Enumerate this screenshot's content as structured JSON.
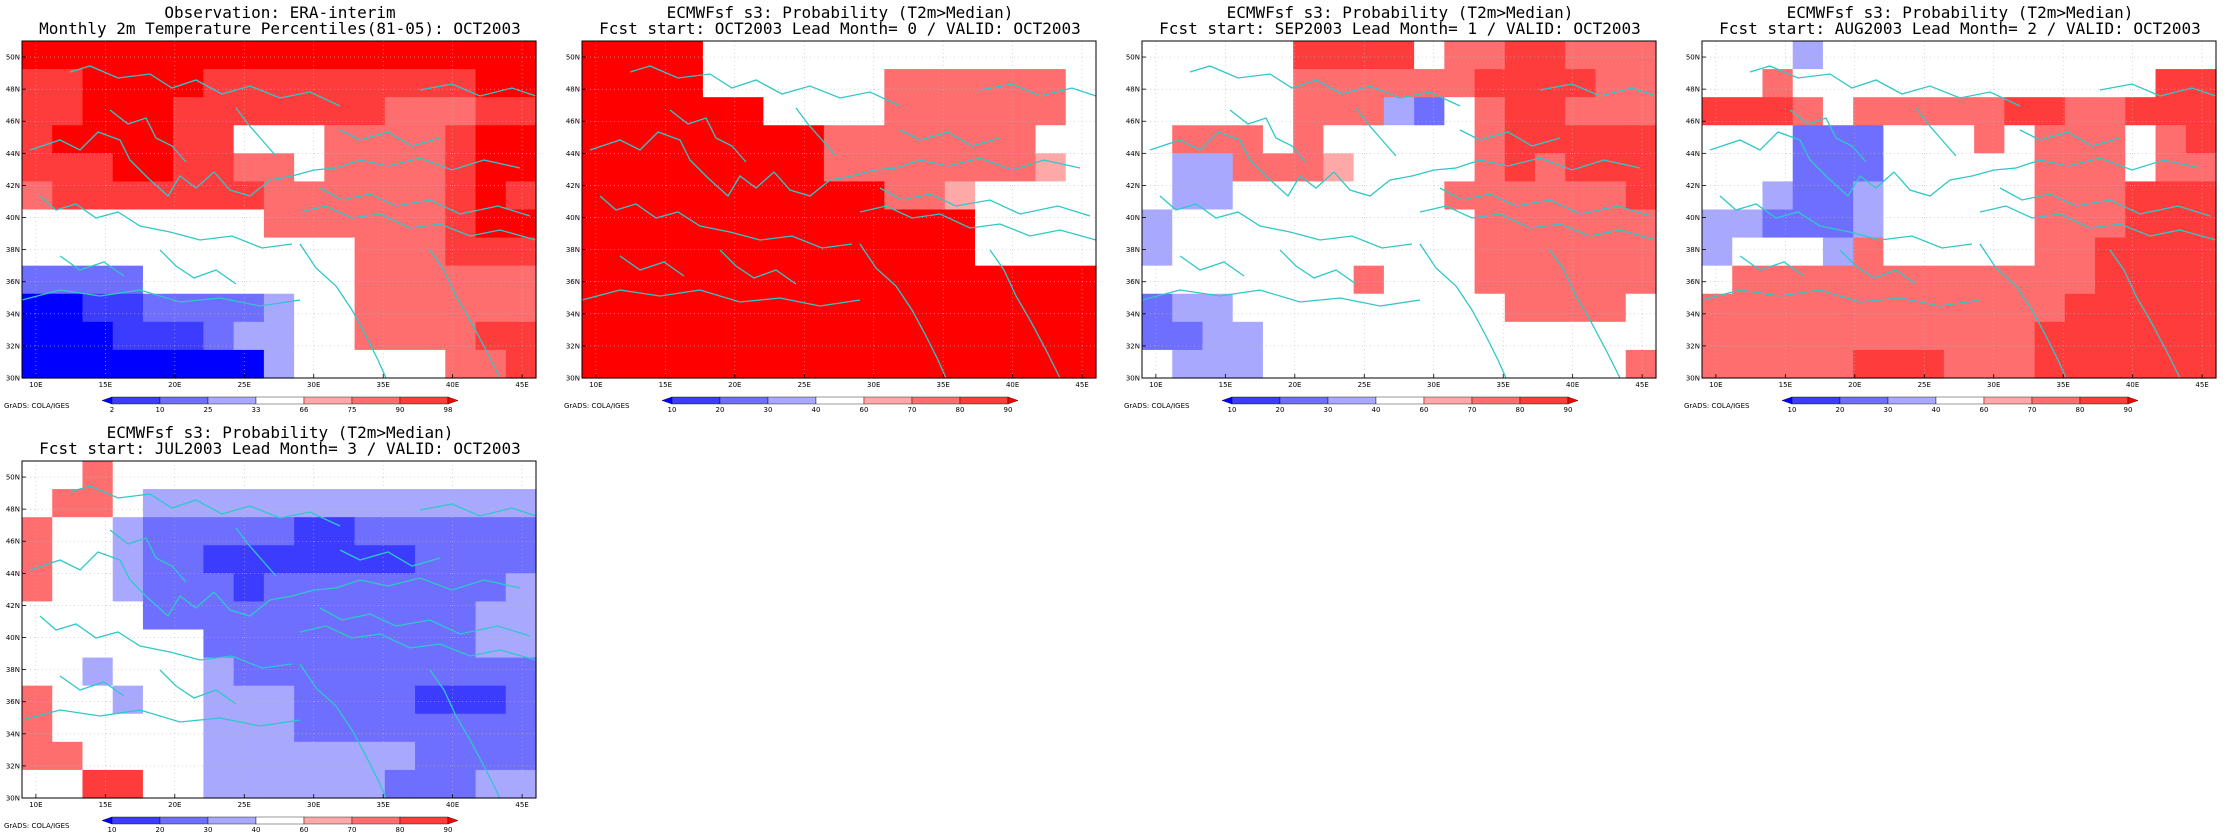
{
  "credit": "GrADS: COLA/IGES",
  "lat_range": [
    30,
    51
  ],
  "lon_range": [
    9,
    46
  ],
  "lat_ticks": [
    "30N",
    "32N",
    "34N",
    "36N",
    "38N",
    "40N",
    "42N",
    "44N",
    "46N",
    "48N",
    "50N"
  ],
  "lat_values": [
    30,
    32,
    34,
    36,
    38,
    40,
    42,
    44,
    46,
    48,
    50
  ],
  "lon_ticks": [
    "10E",
    "15E",
    "20E",
    "25E",
    "30E",
    "35E",
    "40E",
    "45E"
  ],
  "lon_values": [
    10,
    15,
    20,
    25,
    30,
    35,
    40,
    45
  ],
  "colors": {
    "coast": "#2fc8c8",
    "grid": "#bbbbbb",
    "obs_scale": [
      "#0000ff",
      "#3c3cff",
      "#6e6eff",
      "#a8a8ff",
      "#ffffff",
      "#ffa8a8",
      "#ff6e6e",
      "#ff3c3c",
      "#ff0000"
    ],
    "prob_scale": [
      "#0000ff",
      "#3c3cff",
      "#6e6eff",
      "#a8a8ff",
      "#ffffff",
      "#ffa8a8",
      "#ff6e6e",
      "#ff3c3c",
      "#ff0000"
    ]
  },
  "panels": [
    {
      "title1": "Observation: ERA-interim",
      "title2": "Monthly 2m Temperature Percentiles(81-05): OCT2003",
      "colorbar_labels": [
        "2",
        "10",
        "25",
        "33",
        "66",
        "75",
        "90",
        "98"
      ],
      "grid": [
        [
          8,
          8,
          8,
          8,
          8,
          8,
          8,
          8,
          8,
          8,
          8,
          8,
          8,
          8,
          8,
          8,
          8
        ],
        [
          7,
          7,
          8,
          8,
          8,
          8,
          7,
          7,
          7,
          7,
          7,
          7,
          7,
          7,
          7,
          8,
          8
        ],
        [
          7,
          7,
          8,
          8,
          8,
          7,
          7,
          7,
          7,
          7,
          7,
          7,
          6,
          6,
          6,
          7,
          7
        ],
        [
          7,
          8,
          8,
          8,
          8,
          7,
          7,
          4,
          4,
          4,
          6,
          6,
          6,
          6,
          7,
          8,
          8
        ],
        [
          7,
          7,
          7,
          8,
          8,
          7,
          7,
          6,
          6,
          4,
          6,
          6,
          6,
          6,
          7,
          8,
          8
        ],
        [
          6,
          7,
          7,
          7,
          7,
          7,
          7,
          7,
          6,
          6,
          6,
          6,
          6,
          6,
          7,
          8,
          7
        ],
        [
          4,
          4,
          4,
          4,
          4,
          4,
          4,
          4,
          6,
          6,
          6,
          6,
          6,
          6,
          7,
          8,
          8
        ],
        [
          4,
          4,
          4,
          4,
          4,
          4,
          4,
          4,
          4,
          4,
          4,
          6,
          6,
          6,
          7,
          7,
          7
        ],
        [
          2,
          2,
          2,
          2,
          4,
          4,
          4,
          4,
          4,
          4,
          4,
          6,
          6,
          6,
          6,
          6,
          6
        ],
        [
          0,
          0,
          1,
          1,
          2,
          2,
          2,
          2,
          3,
          4,
          4,
          6,
          6,
          6,
          6,
          6,
          6
        ],
        [
          0,
          0,
          0,
          1,
          1,
          1,
          2,
          3,
          3,
          4,
          4,
          6,
          6,
          6,
          6,
          7,
          7
        ],
        [
          0,
          0,
          0,
          0,
          0,
          0,
          0,
          0,
          3,
          4,
          4,
          4,
          4,
          4,
          6,
          6,
          7
        ]
      ]
    },
    {
      "title1": "ECMWFsf s3: Probability (T2m>Median)",
      "title2": "Fcst start: OCT2003  Lead Month= 0 / VALID: OCT2003",
      "colorbar_labels": [
        "10",
        "20",
        "30",
        "40",
        "60",
        "70",
        "80",
        "90"
      ],
      "grid": [
        [
          8,
          8,
          8,
          8,
          4,
          4,
          4,
          4,
          4,
          4,
          4,
          4,
          4,
          4,
          4,
          4,
          4
        ],
        [
          8,
          8,
          8,
          8,
          4,
          4,
          4,
          4,
          4,
          4,
          6,
          6,
          6,
          6,
          6,
          6,
          4
        ],
        [
          8,
          8,
          8,
          8,
          8,
          8,
          4,
          4,
          4,
          4,
          6,
          6,
          6,
          6,
          6,
          6,
          4
        ],
        [
          8,
          8,
          8,
          8,
          8,
          8,
          8,
          8,
          6,
          6,
          6,
          6,
          6,
          6,
          6,
          4,
          4
        ],
        [
          8,
          8,
          8,
          8,
          8,
          8,
          8,
          8,
          6,
          6,
          6,
          6,
          6,
          6,
          6,
          5,
          4
        ],
        [
          8,
          8,
          8,
          8,
          8,
          8,
          8,
          8,
          8,
          8,
          6,
          6,
          5,
          4,
          4,
          4,
          4
        ],
        [
          8,
          8,
          8,
          8,
          8,
          8,
          8,
          8,
          8,
          8,
          8,
          8,
          8,
          4,
          4,
          4,
          4
        ],
        [
          8,
          8,
          8,
          8,
          8,
          8,
          8,
          8,
          8,
          8,
          8,
          8,
          8,
          4,
          4,
          4,
          4
        ],
        [
          8,
          8,
          8,
          8,
          8,
          8,
          8,
          8,
          8,
          8,
          8,
          8,
          8,
          8,
          8,
          8,
          8
        ],
        [
          8,
          8,
          8,
          8,
          8,
          8,
          8,
          8,
          8,
          8,
          8,
          8,
          8,
          8,
          8,
          8,
          8
        ],
        [
          8,
          8,
          8,
          8,
          8,
          8,
          8,
          8,
          8,
          8,
          8,
          8,
          8,
          8,
          8,
          8,
          8
        ],
        [
          8,
          8,
          8,
          8,
          8,
          8,
          8,
          8,
          8,
          8,
          8,
          8,
          8,
          8,
          8,
          8,
          8
        ]
      ]
    },
    {
      "title1": "ECMWFsf s3: Probability (T2m>Median)",
      "title2": "Fcst start: SEP2003  Lead Month= 1 / VALID: OCT2003",
      "colorbar_labels": [
        "10",
        "20",
        "30",
        "40",
        "60",
        "70",
        "80",
        "90"
      ],
      "grid": [
        [
          4,
          4,
          4,
          4,
          4,
          7,
          7,
          7,
          7,
          4,
          6,
          6,
          7,
          7,
          6,
          6,
          6
        ],
        [
          4,
          4,
          4,
          4,
          4,
          6,
          6,
          6,
          6,
          6,
          6,
          7,
          7,
          7,
          7,
          6,
          6
        ],
        [
          4,
          4,
          4,
          4,
          4,
          6,
          6,
          6,
          3,
          2,
          4,
          6,
          7,
          7,
          6,
          6,
          6
        ],
        [
          4,
          6,
          6,
          6,
          4,
          6,
          4,
          4,
          4,
          4,
          4,
          6,
          7,
          7,
          7,
          7,
          7
        ],
        [
          4,
          3,
          3,
          6,
          6,
          6,
          5,
          4,
          4,
          4,
          4,
          6,
          7,
          6,
          7,
          7,
          7
        ],
        [
          4,
          3,
          3,
          4,
          4,
          4,
          4,
          4,
          4,
          4,
          6,
          6,
          6,
          6,
          6,
          6,
          7
        ],
        [
          3,
          4,
          4,
          4,
          4,
          4,
          4,
          4,
          4,
          4,
          4,
          6,
          6,
          6,
          6,
          6,
          6
        ],
        [
          3,
          4,
          4,
          4,
          4,
          4,
          4,
          4,
          4,
          4,
          4,
          6,
          6,
          6,
          6,
          6,
          6
        ],
        [
          4,
          4,
          4,
          4,
          4,
          4,
          4,
          6,
          4,
          4,
          4,
          6,
          6,
          6,
          6,
          6,
          6
        ],
        [
          2,
          3,
          3,
          4,
          4,
          4,
          4,
          4,
          4,
          4,
          4,
          4,
          6,
          6,
          6,
          6,
          4
        ],
        [
          2,
          2,
          3,
          3,
          4,
          4,
          4,
          4,
          4,
          4,
          4,
          4,
          4,
          4,
          4,
          4,
          4
        ],
        [
          4,
          3,
          3,
          3,
          4,
          4,
          4,
          4,
          4,
          4,
          4,
          4,
          4,
          4,
          4,
          4,
          6
        ]
      ]
    },
    {
      "title1": "ECMWFsf s3: Probability (T2m>Median)",
      "title2": "Fcst start: AUG2003  Lead Month= 2 / VALID: OCT2003",
      "colorbar_labels": [
        "10",
        "20",
        "30",
        "40",
        "60",
        "70",
        "80",
        "90"
      ],
      "grid": [
        [
          4,
          4,
          4,
          3,
          4,
          4,
          4,
          4,
          4,
          4,
          4,
          4,
          4,
          4,
          4,
          4,
          4
        ],
        [
          4,
          4,
          6,
          4,
          4,
          4,
          4,
          4,
          4,
          4,
          4,
          4,
          4,
          4,
          4,
          7,
          7
        ],
        [
          7,
          7,
          7,
          6,
          4,
          6,
          6,
          6,
          6,
          6,
          7,
          7,
          6,
          6,
          7,
          7,
          7
        ],
        [
          4,
          4,
          4,
          2,
          2,
          2,
          4,
          4,
          4,
          6,
          4,
          6,
          6,
          6,
          4,
          6,
          7
        ],
        [
          4,
          4,
          4,
          2,
          2,
          2,
          4,
          4,
          4,
          4,
          4,
          6,
          6,
          6,
          4,
          6,
          6
        ],
        [
          4,
          4,
          3,
          2,
          2,
          3,
          4,
          4,
          4,
          4,
          4,
          6,
          6,
          6,
          7,
          7,
          7
        ],
        [
          3,
          3,
          2,
          2,
          2,
          3,
          4,
          4,
          4,
          4,
          4,
          6,
          6,
          6,
          7,
          7,
          7
        ],
        [
          3,
          4,
          4,
          4,
          3,
          6,
          4,
          4,
          4,
          4,
          4,
          6,
          6,
          7,
          7,
          7,
          7
        ],
        [
          4,
          6,
          6,
          6,
          6,
          6,
          6,
          6,
          6,
          6,
          6,
          6,
          6,
          7,
          7,
          7,
          7
        ],
        [
          6,
          6,
          6,
          6,
          6,
          6,
          6,
          6,
          6,
          6,
          6,
          6,
          7,
          7,
          7,
          7,
          7
        ],
        [
          6,
          6,
          6,
          6,
          6,
          6,
          6,
          6,
          6,
          6,
          6,
          7,
          7,
          7,
          7,
          7,
          7
        ],
        [
          6,
          6,
          6,
          6,
          6,
          7,
          7,
          7,
          6,
          6,
          6,
          7,
          7,
          7,
          7,
          7,
          7
        ]
      ]
    },
    {
      "title1": "ECMWFsf s3: Probability (T2m>Median)",
      "title2": "Fcst start: JUL2003  Lead Month= 3 / VALID: OCT2003",
      "colorbar_labels": [
        "10",
        "20",
        "30",
        "40",
        "60",
        "70",
        "80",
        "90"
      ],
      "grid": [
        [
          4,
          4,
          6,
          4,
          4,
          4,
          4,
          4,
          4,
          4,
          4,
          4,
          4,
          4,
          4,
          4,
          4
        ],
        [
          4,
          6,
          6,
          4,
          3,
          3,
          3,
          3,
          3,
          3,
          3,
          3,
          3,
          3,
          3,
          3,
          3
        ],
        [
          6,
          4,
          4,
          3,
          2,
          2,
          2,
          2,
          2,
          1,
          1,
          2,
          2,
          2,
          2,
          2,
          2
        ],
        [
          6,
          4,
          4,
          3,
          2,
          2,
          1,
          1,
          1,
          1,
          1,
          1,
          1,
          2,
          2,
          2,
          2
        ],
        [
          6,
          4,
          4,
          3,
          2,
          2,
          2,
          1,
          2,
          2,
          2,
          2,
          2,
          2,
          2,
          2,
          3
        ],
        [
          4,
          4,
          4,
          4,
          2,
          2,
          2,
          2,
          2,
          2,
          2,
          2,
          2,
          2,
          2,
          3,
          3
        ],
        [
          4,
          4,
          4,
          4,
          4,
          4,
          2,
          2,
          2,
          2,
          2,
          2,
          2,
          2,
          2,
          3,
          3
        ],
        [
          4,
          4,
          3,
          4,
          4,
          4,
          3,
          2,
          2,
          2,
          2,
          2,
          2,
          2,
          2,
          2,
          2
        ],
        [
          6,
          4,
          4,
          3,
          4,
          4,
          3,
          3,
          3,
          2,
          2,
          2,
          2,
          1,
          1,
          1,
          2
        ],
        [
          6,
          4,
          4,
          4,
          4,
          4,
          3,
          3,
          3,
          2,
          2,
          2,
          2,
          2,
          2,
          2,
          2
        ],
        [
          6,
          6,
          4,
          4,
          4,
          4,
          3,
          3,
          3,
          3,
          3,
          3,
          3,
          2,
          2,
          2,
          2
        ],
        [
          4,
          4,
          7,
          7,
          4,
          4,
          3,
          3,
          3,
          3,
          3,
          3,
          2,
          2,
          2,
          3,
          3
        ]
      ]
    }
  ]
}
